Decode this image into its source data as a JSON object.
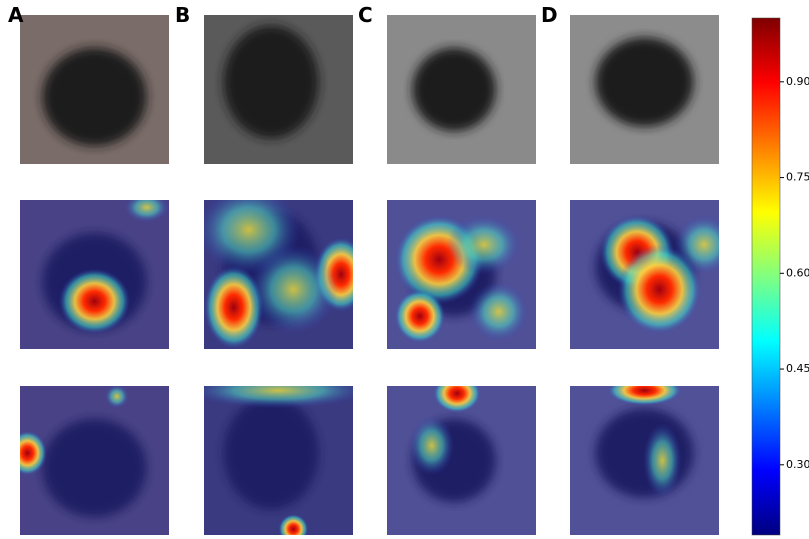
{
  "panels": [
    {
      "label": "A"
    },
    {
      "label": "B"
    },
    {
      "label": "C"
    },
    {
      "label": "D"
    }
  ],
  "colorbar": {
    "clim": [
      0.19,
      1.0
    ],
    "ticks": [
      {
        "value": 0.3,
        "label": "0.30"
      },
      {
        "value": 0.45,
        "label": "0.45"
      },
      {
        "value": 0.6,
        "label": "0.60"
      },
      {
        "value": 0.75,
        "label": "0.75"
      },
      {
        "value": 0.9,
        "label": "0.90"
      }
    ]
  }
}
